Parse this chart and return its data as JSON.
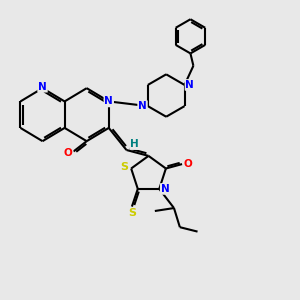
{
  "bg_color": "#e8e8e8",
  "atom_colors": {
    "N": "#0000ff",
    "O": "#ff0000",
    "S": "#cccc00",
    "C": "#000000",
    "H": "#008080"
  },
  "bond_color": "#000000",
  "bond_width": 1.5,
  "figsize": [
    3.0,
    3.0
  ],
  "dpi": 100,
  "xlim": [
    0,
    10
  ],
  "ylim": [
    0,
    10
  ]
}
